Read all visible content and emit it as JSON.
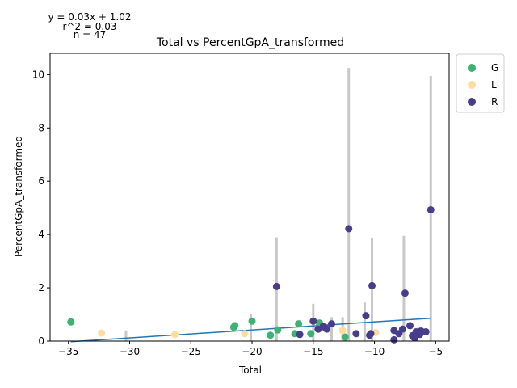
{
  "chart_data": {
    "type": "scatter",
    "title": "Total vs PercentGpA_transformed",
    "xlabel": "Total",
    "ylabel": "PercentGpA_transformed",
    "xlim": [
      -36.5,
      -3.9
    ],
    "ylim": [
      0,
      10.8
    ],
    "xticks": [
      -35,
      -30,
      -25,
      -20,
      -15,
      -10,
      -5
    ],
    "yticks": [
      0,
      2,
      4,
      6,
      8,
      10
    ],
    "xtick_labels": [
      "−35",
      "−30",
      "−25",
      "−20",
      "−15",
      "−10",
      "−5"
    ],
    "ytick_labels": [
      "0",
      "2",
      "4",
      "6",
      "8",
      "10"
    ],
    "grid": false,
    "legend_position": "outside-top-right",
    "annotations": {
      "equation": "y = 0.03x + 1.02",
      "r2": "r^2 = 0.03",
      "n": "n = 47"
    },
    "regression": {
      "slope": 0.03,
      "intercept": 1.02,
      "x_range": [
        -34.8,
        -5.4
      ],
      "color": "#1f77b4"
    },
    "error_bars": [
      {
        "x": -30.3,
        "lo": 0,
        "hi": 0.4
      },
      {
        "x": -20.1,
        "lo": 0,
        "hi": 1.0
      },
      {
        "x": -18.0,
        "lo": 0,
        "hi": 3.9
      },
      {
        "x": -15.0,
        "lo": 0,
        "hi": 1.4
      },
      {
        "x": -13.5,
        "lo": 0,
        "hi": 0.9
      },
      {
        "x": -12.6,
        "lo": 0,
        "hi": 0.9
      },
      {
        "x": -12.1,
        "lo": 0,
        "hi": 10.25
      },
      {
        "x": -10.8,
        "lo": 0,
        "hi": 1.45
      },
      {
        "x": -10.2,
        "lo": 0,
        "hi": 3.85
      },
      {
        "x": -7.6,
        "lo": 0,
        "hi": 3.95
      },
      {
        "x": -5.4,
        "lo": 0,
        "hi": 9.95
      }
    ],
    "series": [
      {
        "name": "G",
        "color": "#3cb371",
        "points": [
          {
            "x": -34.8,
            "y": 0.72
          },
          {
            "x": -21.5,
            "y": 0.52
          },
          {
            "x": -21.4,
            "y": 0.58
          },
          {
            "x": -20.0,
            "y": 0.75
          },
          {
            "x": -18.5,
            "y": 0.22
          },
          {
            "x": -17.9,
            "y": 0.42
          },
          {
            "x": -16.5,
            "y": 0.28
          },
          {
            "x": -16.2,
            "y": 0.65
          },
          {
            "x": -15.2,
            "y": 0.28
          },
          {
            "x": -14.5,
            "y": 0.68
          },
          {
            "x": -12.4,
            "y": 0.15
          }
        ]
      },
      {
        "name": "L",
        "color": "#ffdca0",
        "points": [
          {
            "x": -32.3,
            "y": 0.3
          },
          {
            "x": -26.3,
            "y": 0.25
          },
          {
            "x": -20.6,
            "y": 0.28
          },
          {
            "x": -14.5,
            "y": 0.45
          },
          {
            "x": -12.6,
            "y": 0.4
          },
          {
            "x": -9.9,
            "y": 0.32
          },
          {
            "x": -6.3,
            "y": 0.42
          }
        ]
      },
      {
        "name": "R",
        "color": "#483d8b",
        "points": [
          {
            "x": -18.0,
            "y": 2.05
          },
          {
            "x": -16.1,
            "y": 0.25
          },
          {
            "x": -15.0,
            "y": 0.75
          },
          {
            "x": -14.6,
            "y": 0.45
          },
          {
            "x": -14.2,
            "y": 0.55
          },
          {
            "x": -13.9,
            "y": 0.45
          },
          {
            "x": -13.5,
            "y": 0.65
          },
          {
            "x": -12.1,
            "y": 4.22
          },
          {
            "x": -11.5,
            "y": 0.28
          },
          {
            "x": -10.7,
            "y": 0.95
          },
          {
            "x": -10.4,
            "y": 0.22
          },
          {
            "x": -10.3,
            "y": 0.28
          },
          {
            "x": -10.2,
            "y": 2.08
          },
          {
            "x": -8.4,
            "y": 0.05
          },
          {
            "x": -8.4,
            "y": 0.4
          },
          {
            "x": -8.0,
            "y": 0.28
          },
          {
            "x": -7.7,
            "y": 0.45
          },
          {
            "x": -7.5,
            "y": 1.8
          },
          {
            "x": -7.1,
            "y": 0.58
          },
          {
            "x": -6.9,
            "y": 0.2
          },
          {
            "x": -6.7,
            "y": 0.12
          },
          {
            "x": -6.6,
            "y": 0.35
          },
          {
            "x": -6.4,
            "y": 0.3
          },
          {
            "x": -6.3,
            "y": 0.25
          },
          {
            "x": -6.2,
            "y": 0.38
          },
          {
            "x": -5.8,
            "y": 0.35
          },
          {
            "x": -5.4,
            "y": 4.93
          },
          {
            "x": -6.8,
            "y": 0.15
          },
          {
            "x": -14.0,
            "y": 0.5
          }
        ]
      }
    ]
  }
}
